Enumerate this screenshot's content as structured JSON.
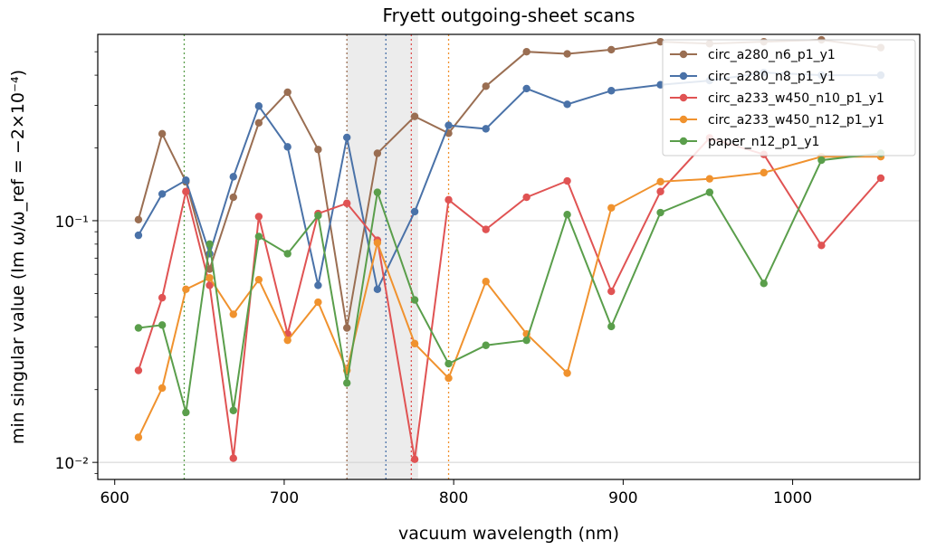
{
  "chart_data": {
    "type": "line",
    "title": "Fryett outgoing-sheet scans",
    "xlabel": "vacuum wavelength (nm)",
    "ylabel": "min singular value (Im ω/ω_ref = −2×10⁻⁴)",
    "xlim": [
      590,
      1075
    ],
    "ylim": [
      0.0085,
      0.59
    ],
    "yscale": "log",
    "x_ticks": [
      600,
      700,
      800,
      900,
      1000
    ],
    "y_ticks": [
      {
        "value": 0.01,
        "label": "10⁻²"
      },
      {
        "value": 0.1,
        "label": "10⁻¹"
      }
    ],
    "shaded_band": [
      737,
      779
    ],
    "grid": "horizontal at major y ticks",
    "legend_position": "top-right",
    "series": [
      {
        "name": "circ_a280_n6_p1_y1",
        "color": "#9a6e52",
        "x": [
          614,
          628,
          642,
          656,
          670,
          685,
          702,
          720,
          737,
          755,
          777,
          797,
          819,
          843,
          867,
          893,
          922,
          951,
          983,
          1017,
          1052
        ],
        "y": [
          0.101,
          0.229,
          0.145,
          0.063,
          0.125,
          0.254,
          0.34,
          0.197,
          0.036,
          0.19,
          0.27,
          0.23,
          0.36,
          0.5,
          0.49,
          0.51,
          0.55,
          0.54,
          0.55,
          0.56,
          0.52
        ],
        "vline": 737
      },
      {
        "name": "circ_a280_n8_p1_y1",
        "color": "#4a72a8",
        "x": [
          614,
          628,
          642,
          656,
          670,
          685,
          702,
          720,
          737,
          755,
          777,
          797,
          819,
          843,
          867,
          893,
          922,
          951,
          983,
          1017,
          1052
        ],
        "y": [
          0.087,
          0.129,
          0.147,
          0.073,
          0.152,
          0.298,
          0.202,
          0.054,
          0.221,
          0.052,
          0.109,
          0.248,
          0.24,
          0.352,
          0.303,
          0.345,
          0.365,
          0.38,
          0.41,
          0.4,
          0.4
        ],
        "vline": 760
      },
      {
        "name": "circ_a233_w450_n10_p1_y1",
        "color": "#e05353",
        "x": [
          614,
          628,
          642,
          656,
          670,
          685,
          702,
          720,
          737,
          755,
          777,
          797,
          819,
          843,
          867,
          893,
          922,
          951,
          983,
          1017,
          1052
        ],
        "y": [
          0.024,
          0.048,
          0.132,
          0.054,
          0.0104,
          0.104,
          0.034,
          0.107,
          0.118,
          0.083,
          0.0103,
          0.122,
          0.092,
          0.125,
          0.146,
          0.051,
          0.132,
          0.22,
          0.188,
          0.079,
          0.15
        ],
        "vline": 775
      },
      {
        "name": "circ_a233_w450_n12_p1_y1",
        "color": "#f0922e",
        "x": [
          614,
          628,
          642,
          656,
          670,
          685,
          702,
          720,
          737,
          755,
          777,
          797,
          819,
          843,
          867,
          893,
          922,
          951,
          983,
          1017,
          1052
        ],
        "y": [
          0.0127,
          0.0203,
          0.052,
          0.058,
          0.041,
          0.057,
          0.032,
          0.046,
          0.024,
          0.081,
          0.031,
          0.0223,
          0.056,
          0.034,
          0.0234,
          0.113,
          0.145,
          0.149,
          0.158,
          0.184,
          0.184
        ],
        "vline": 797
      },
      {
        "name": "paper_n12_p1_y1",
        "color": "#5a9e4b",
        "x": [
          614,
          628,
          642,
          656,
          670,
          685,
          702,
          720,
          737,
          755,
          777,
          797,
          819,
          843,
          867,
          893,
          922,
          951,
          983,
          1017,
          1052
        ],
        "y": [
          0.036,
          0.037,
          0.0161,
          0.08,
          0.0164,
          0.086,
          0.073,
          0.105,
          0.0213,
          0.131,
          0.047,
          0.0256,
          0.0305,
          0.032,
          0.106,
          0.0365,
          0.108,
          0.131,
          0.055,
          0.178,
          0.19
        ],
        "vline": 641
      }
    ]
  }
}
